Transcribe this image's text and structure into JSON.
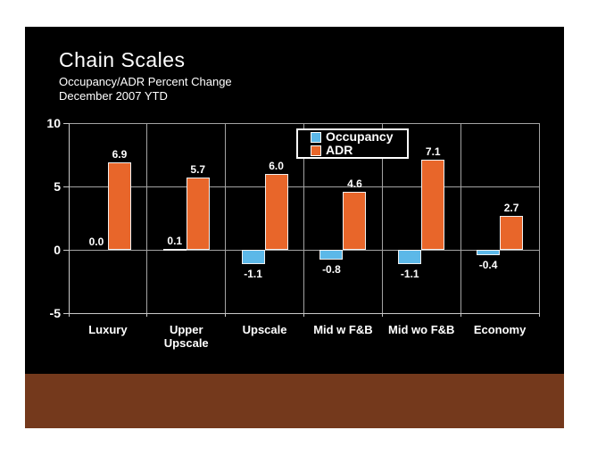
{
  "slide": {
    "title": "Chain Scales",
    "subtitle_line1": "Occupancy/ADR Percent Change",
    "subtitle_line2": "December 2007 YTD"
  },
  "chart_data": {
    "type": "bar",
    "categories": [
      "Luxury",
      "Upper\nUpscale",
      "Upscale",
      "Mid w F&B",
      "Mid wo F&B",
      "Economy"
    ],
    "series": [
      {
        "name": "Occupancy",
        "color": "#5CB8E8",
        "values": [
          0.0,
          0.1,
          -1.1,
          -0.8,
          -1.1,
          -0.4
        ]
      },
      {
        "name": "ADR",
        "color": "#E8662A",
        "values": [
          6.9,
          5.7,
          6.0,
          4.6,
          7.1,
          2.7
        ]
      }
    ],
    "ylim": [
      -5,
      10
    ],
    "yticks": [
      10,
      5,
      0,
      -5
    ],
    "grid": true,
    "legend_position": "top-center-overlay",
    "value_labels": true,
    "value_label_format": "0.0"
  },
  "colors": {
    "page_background": "#FFFFFF",
    "slide_background": "#000000",
    "footer_bar": "#74391C",
    "text": "#FFFFFF",
    "gridline": "#A3A3A3",
    "axis": "#C9C9C9",
    "bar_border": "#F0F0F0",
    "occupancy": "#5CB8E8",
    "adr": "#E8662A"
  }
}
